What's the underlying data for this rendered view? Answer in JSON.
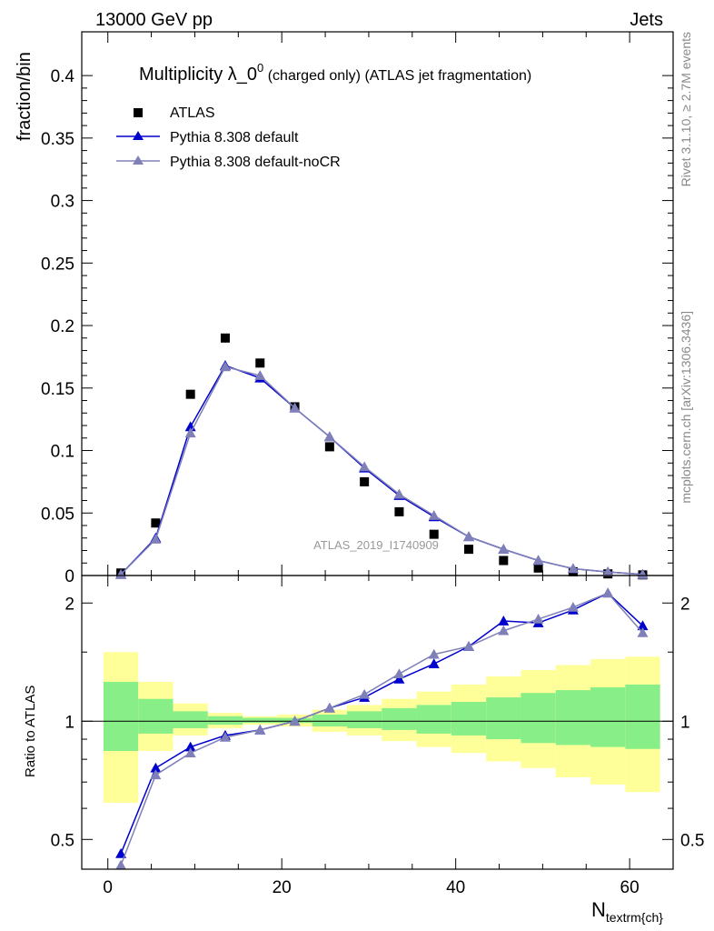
{
  "header": {
    "left": "13000 GeV pp",
    "right": "Jets"
  },
  "side_text": {
    "rivet": "Rivet 3.1.10, ≥ 2.7M events",
    "mcplots": "mcplots.cern.ch [arXiv:1306.3436]"
  },
  "analysis_label": "ATLAS_2019_I1740909",
  "chart_data": [
    {
      "type": "scatter",
      "panel": "main",
      "title": "Multiplicity λ_0",
      "title_superscript": "0",
      "title_suffix": " (charged only) (ATLAS jet fragmentation)",
      "ylabel": "fraction/bin",
      "xlim": [
        -3,
        65
      ],
      "ylim": [
        0,
        0.435
      ],
      "yticks": [
        "0",
        "0.05",
        "0.1",
        "0.15",
        "0.2",
        "0.25",
        "0.3",
        "0.35",
        "0.4"
      ],
      "yticks_values": [
        0,
        0.05,
        0.1,
        0.15,
        0.2,
        0.25,
        0.3,
        0.35,
        0.4
      ],
      "x": [
        1.5,
        5.5,
        9.5,
        13.5,
        17.5,
        21.5,
        25.5,
        29.5,
        33.5,
        37.5,
        41.5,
        45.5,
        49.5,
        53.5,
        57.5,
        61.5
      ],
      "series": [
        {
          "name": "ATLAS",
          "color": "#000000",
          "marker": "square",
          "values": [
            0.002,
            0.042,
            0.145,
            0.19,
            0.17,
            0.135,
            0.103,
            0.075,
            0.051,
            0.033,
            0.021,
            0.012,
            0.006,
            0.003,
            0.0013,
            0.0005
          ]
        },
        {
          "name": "Pythia 8.308 default",
          "color": "#0000cc",
          "marker": "triangle",
          "values": [
            0.0009,
            0.03,
            0.119,
            0.168,
            0.158,
            0.134,
            0.111,
            0.086,
            0.064,
            0.047,
            0.031,
            0.021,
            0.012,
            0.0055,
            0.0028,
            0.0009
          ]
        },
        {
          "name": "Pythia 8.308 default-noCR",
          "color": "#8080b8",
          "marker": "triangle",
          "values": [
            0.0008,
            0.029,
            0.114,
            0.167,
            0.16,
            0.134,
            0.111,
            0.087,
            0.065,
            0.048,
            0.031,
            0.021,
            0.012,
            0.0055,
            0.0028,
            0.0008
          ]
        }
      ]
    },
    {
      "type": "line",
      "panel": "ratio",
      "ylabel": "Ratio to ATLAS",
      "xlabel": "N",
      "xlabel_subscript": "textrm{ch}",
      "xlim": [
        -3,
        65
      ],
      "ylim": [
        0.42,
        2.35
      ],
      "log_y": true,
      "xticks": [
        "0",
        "20",
        "40",
        "60"
      ],
      "xticks_values": [
        0,
        20,
        40,
        60
      ],
      "yticks": [
        "0.5",
        "1",
        "2"
      ],
      "yticks_values": [
        0.5,
        1,
        2
      ],
      "x": [
        1.5,
        5.5,
        9.5,
        13.5,
        17.5,
        21.5,
        25.5,
        29.5,
        33.5,
        37.5,
        41.5,
        45.5,
        49.5,
        53.5,
        57.5,
        61.5
      ],
      "band_edges": [
        -0.5,
        3.5,
        7.5,
        11.5,
        15.5,
        19.5,
        23.5,
        27.5,
        31.5,
        35.5,
        39.5,
        43.5,
        47.5,
        51.5,
        55.5,
        59.5,
        63.5
      ],
      "band_yellow": [
        [
          0.62,
          1.5
        ],
        [
          0.84,
          1.26
        ],
        [
          0.92,
          1.11
        ],
        [
          0.96,
          1.05
        ],
        [
          0.98,
          1.03
        ],
        [
          0.97,
          1.04
        ],
        [
          0.94,
          1.07
        ],
        [
          0.92,
          1.1
        ],
        [
          0.89,
          1.14
        ],
        [
          0.86,
          1.19
        ],
        [
          0.83,
          1.24
        ],
        [
          0.79,
          1.3
        ],
        [
          0.76,
          1.35
        ],
        [
          0.72,
          1.39
        ],
        [
          0.69,
          1.44
        ],
        [
          0.66,
          1.46
        ],
        [
          0.64,
          1.48
        ]
      ],
      "band_green": [
        [
          0.84,
          1.26
        ],
        [
          0.93,
          1.14
        ],
        [
          0.96,
          1.06
        ],
        [
          0.98,
          1.03
        ],
        [
          0.99,
          1.02
        ],
        [
          0.99,
          1.02
        ],
        [
          0.97,
          1.04
        ],
        [
          0.96,
          1.06
        ],
        [
          0.95,
          1.08
        ],
        [
          0.93,
          1.1
        ],
        [
          0.92,
          1.12
        ],
        [
          0.9,
          1.15
        ],
        [
          0.88,
          1.18
        ],
        [
          0.87,
          1.2
        ],
        [
          0.86,
          1.22
        ],
        [
          0.85,
          1.24
        ],
        [
          0.85,
          1.26
        ]
      ],
      "series": [
        {
          "name": "Pythia 8.308 default",
          "color": "#0000cc",
          "marker": "triangle",
          "values": [
            0.46,
            0.76,
            0.86,
            0.92,
            0.95,
            1.0,
            1.08,
            1.15,
            1.28,
            1.4,
            1.55,
            1.8,
            1.78,
            1.92,
            2.12,
            1.75
          ]
        },
        {
          "name": "Pythia 8.308 default-noCR",
          "color": "#8080b8",
          "marker": "triangle",
          "values": [
            0.43,
            0.73,
            0.83,
            0.91,
            0.95,
            1.0,
            1.08,
            1.17,
            1.32,
            1.48,
            1.55,
            1.7,
            1.82,
            1.95,
            2.12,
            1.68
          ]
        }
      ]
    }
  ]
}
